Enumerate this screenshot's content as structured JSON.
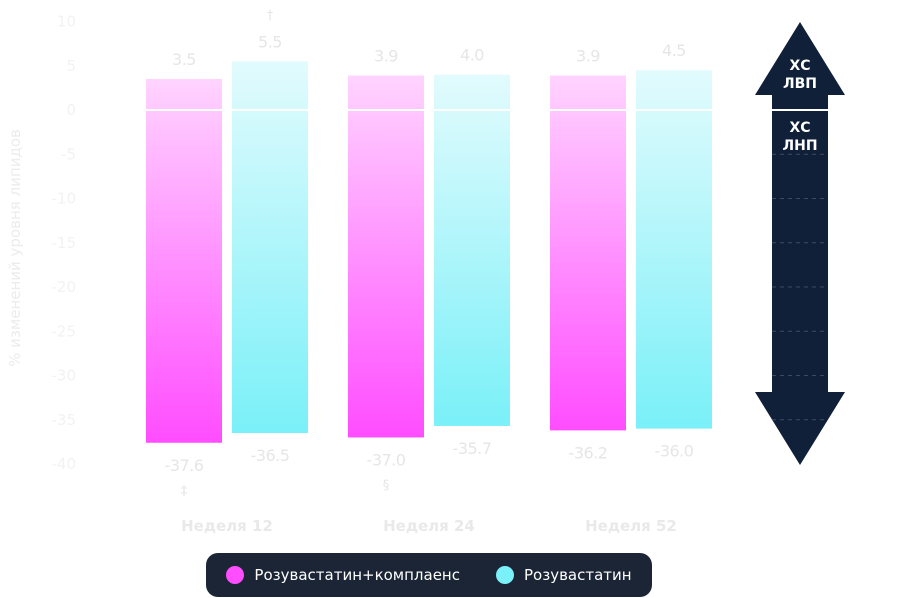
{
  "chart_data": {
    "type": "bar",
    "title": "",
    "ylabel": "% изменений уровня липидов",
    "ylim": [
      -40,
      10
    ],
    "yticks": [
      10,
      5,
      0,
      -5,
      -10,
      -15,
      -20,
      -25,
      -30,
      -35,
      -40
    ],
    "categories": [
      "Неделя 12",
      "Неделя 24",
      "Неделя 52"
    ],
    "series": [
      {
        "name": "Розувастатин+комплаенс",
        "color": "#ff4dff",
        "hdl": [
          3.5,
          3.9,
          3.9
        ],
        "ldl": [
          -37.6,
          -37.0,
          -36.2
        ],
        "hdl_labels": [
          "3.5",
          "3.9",
          "3.9"
        ],
        "ldl_labels": [
          "-37.6",
          "-37.0",
          "-36.2"
        ]
      },
      {
        "name": "Розувастатин",
        "color": "#7af0f8",
        "hdl": [
          5.5,
          4.0,
          4.5
        ],
        "ldl": [
          -36.5,
          -35.7,
          -36.0
        ],
        "hdl_labels": [
          "5.5",
          "4.0",
          "4.5"
        ],
        "ldl_labels": [
          "-36.5",
          "-35.7",
          "-36.0"
        ]
      }
    ],
    "annotations": [
      {
        "text": "†",
        "series": 1,
        "category": 0,
        "position": "above"
      },
      {
        "text": "‡",
        "series": 0,
        "category": 0,
        "position": "below"
      },
      {
        "text": "§",
        "series": 0,
        "category": 1,
        "position": "below"
      }
    ],
    "arrow": {
      "up_label_line1": "ХС",
      "up_label_line2": "ЛВП",
      "down_label_line1": "ХС",
      "down_label_line2": "ЛНП",
      "color": "#0f2038"
    },
    "legend_placement": "bottom"
  },
  "legend": {
    "items": [
      {
        "label": "Розувастатин+комплаенс",
        "color": "#ff4dff"
      },
      {
        "label": "Розувастатин",
        "color": "#7af0f8"
      }
    ]
  }
}
